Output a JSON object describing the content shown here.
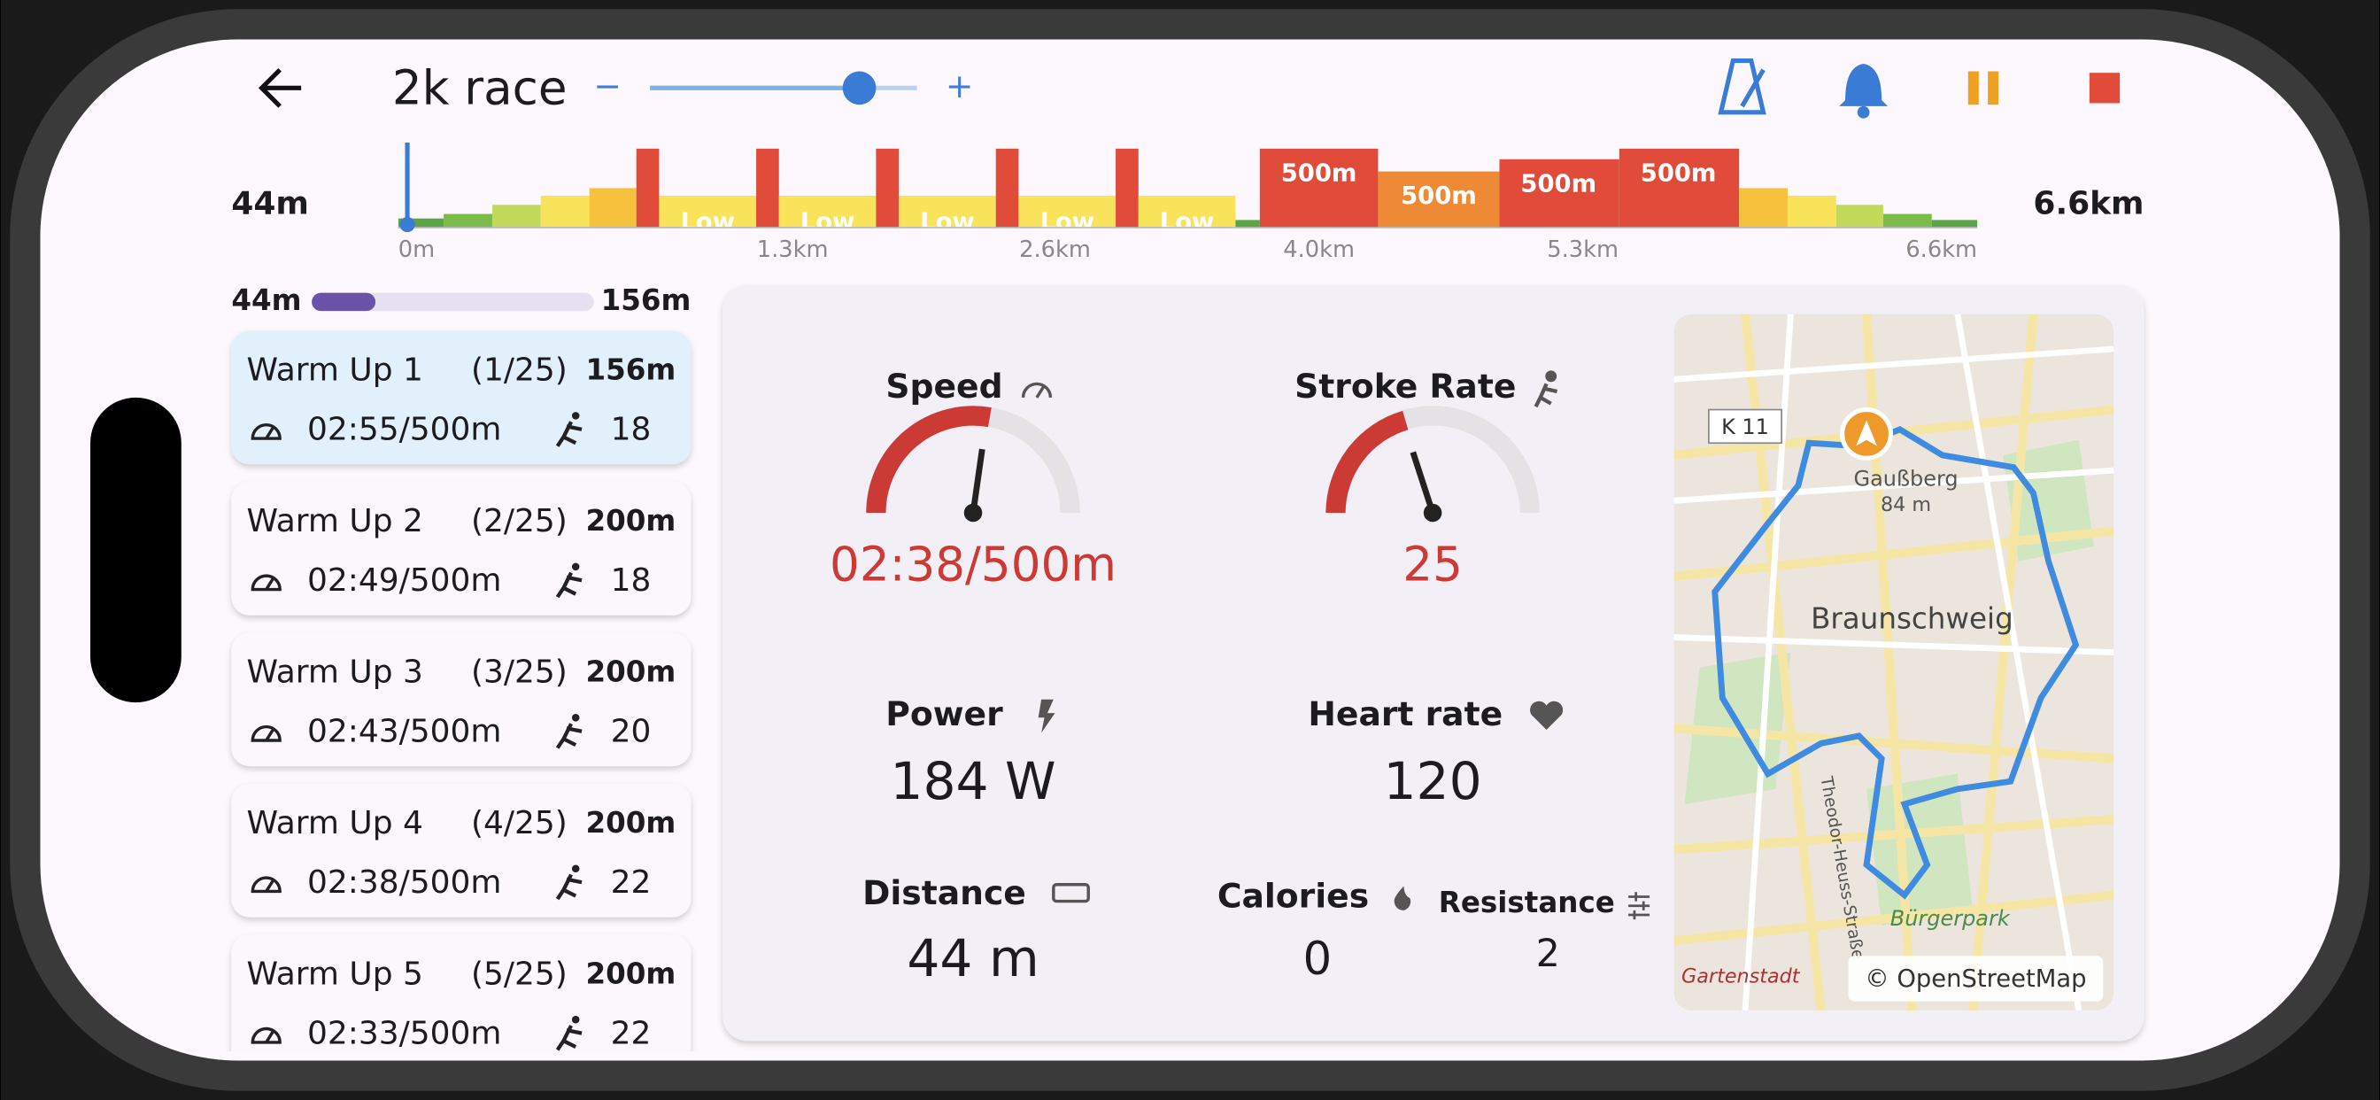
{
  "header": {
    "title": "2k race",
    "slider_minus": "−",
    "slider_plus": "+"
  },
  "timeline": {
    "start": "44m",
    "end": "6.6km",
    "axis": [
      "0m",
      "1.3km",
      "2.6km",
      "4.0km",
      "5.3km",
      "6.6km"
    ],
    "low_labels": [
      "Low",
      "Low",
      "Low",
      "Low",
      "Low"
    ],
    "fast_labels": [
      "500m",
      "500m",
      "500m",
      "500m"
    ]
  },
  "progress": {
    "start": "44m",
    "end": "156m"
  },
  "intervals": [
    {
      "name": "Warm Up 1",
      "index": "(1/25)",
      "distance": "156m",
      "pace": "02:55/500m",
      "rate": "18"
    },
    {
      "name": "Warm Up 2",
      "index": "(2/25)",
      "distance": "200m",
      "pace": "02:49/500m",
      "rate": "18"
    },
    {
      "name": "Warm Up 3",
      "index": "(3/25)",
      "distance": "200m",
      "pace": "02:43/500m",
      "rate": "20"
    },
    {
      "name": "Warm Up 4",
      "index": "(4/25)",
      "distance": "200m",
      "pace": "02:38/500m",
      "rate": "22"
    },
    {
      "name": "Warm Up 5",
      "index": "(5/25)",
      "distance": "200m",
      "pace": "02:33/500m",
      "rate": "22"
    }
  ],
  "metrics": {
    "speed": {
      "label": "Speed",
      "value": "02:38/500m"
    },
    "stroke_rate": {
      "label": "Stroke Rate",
      "value": "25"
    },
    "power": {
      "label": "Power",
      "value": "184 W"
    },
    "heart_rate": {
      "label": "Heart rate",
      "value": "120"
    },
    "distance": {
      "label": "Distance",
      "value": "44 m"
    },
    "calories": {
      "label": "Calories",
      "value": "0"
    },
    "resistance": {
      "label": "Resistance",
      "value": "2"
    }
  },
  "map": {
    "road": "K 11",
    "hill": "Gaußberg",
    "elevation": "84 m",
    "city": "Braunschweig",
    "street": "Theodor-Heuss-Straße",
    "park": "Bürgerpark",
    "district": "Gartenstadt",
    "attribution": "© OpenStreetMap"
  }
}
